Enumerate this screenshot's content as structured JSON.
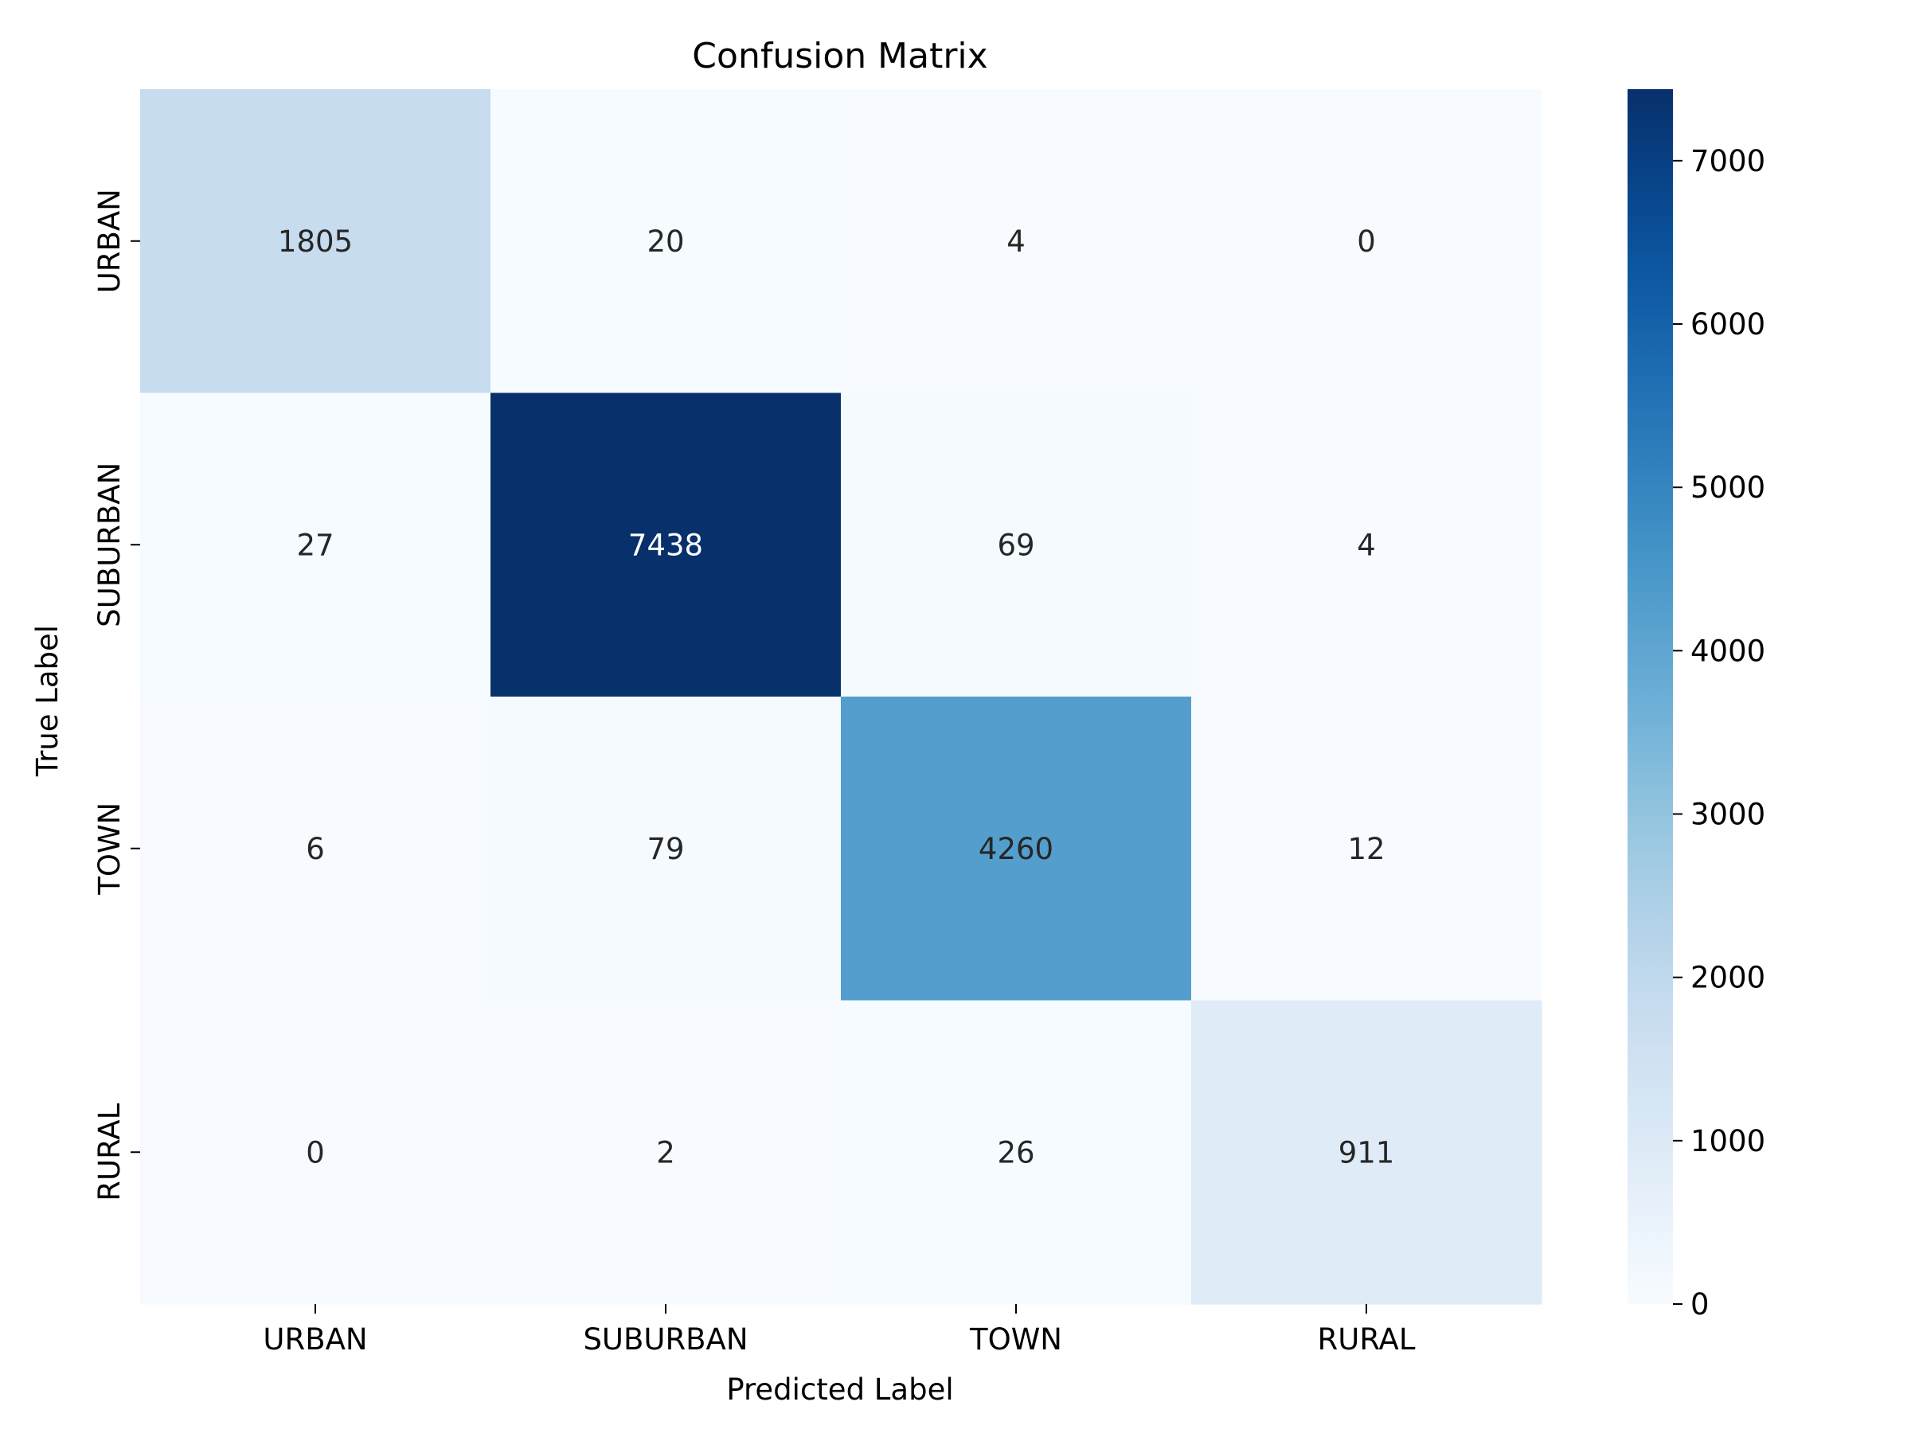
{
  "chart_data": {
    "type": "heatmap",
    "title": "Confusion Matrix",
    "xlabel": "Predicted Label",
    "ylabel": "True Label",
    "x_categories": [
      "URBAN",
      "SUBURBAN",
      "TOWN",
      "RURAL"
    ],
    "y_categories": [
      "URBAN",
      "SUBURBAN",
      "TOWN",
      "RURAL"
    ],
    "values": [
      [
        1805,
        20,
        4,
        0
      ],
      [
        27,
        7438,
        69,
        4
      ],
      [
        6,
        79,
        4260,
        12
      ],
      [
        0,
        2,
        26,
        911
      ]
    ],
    "colorbar": {
      "colormap": "Blues",
      "min": 0,
      "max": 7438,
      "ticks": [
        0,
        1000,
        2000,
        3000,
        4000,
        5000,
        6000,
        7000
      ]
    },
    "colors": {
      "cmap_low": "#f7fbff",
      "cmap_high": "#08306b",
      "text_dark": "#262626",
      "text_light": "#ffffff"
    }
  }
}
